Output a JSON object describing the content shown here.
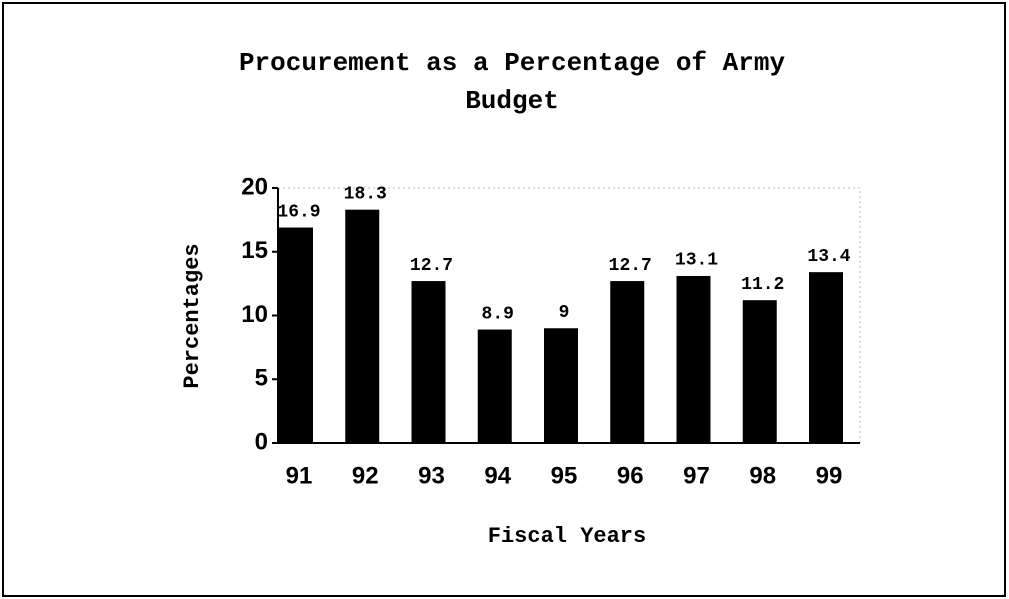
{
  "chart_data": {
    "type": "bar",
    "title": "Procurement as a Percentage of Army Budget",
    "x_label": "Fiscal Years",
    "y_label": "Percentages",
    "categories": [
      "91",
      "92",
      "93",
      "94",
      "95",
      "96",
      "97",
      "98",
      "99"
    ],
    "values": [
      16.9,
      18.3,
      12.7,
      8.9,
      9,
      12.7,
      13.1,
      11.2,
      13.4
    ],
    "color": "#000000",
    "ylim": [
      0,
      20
    ],
    "yticks": [
      0,
      5,
      10,
      15,
      20
    ],
    "grid": false
  }
}
